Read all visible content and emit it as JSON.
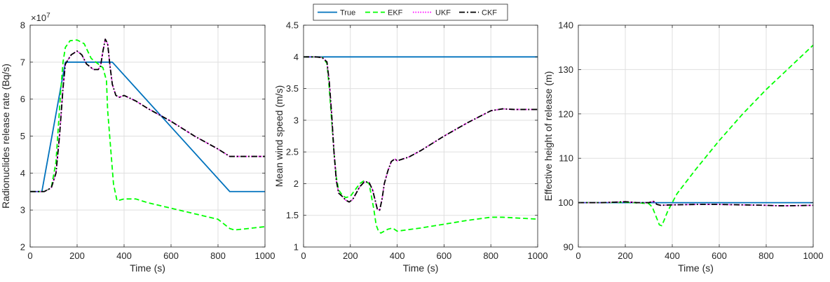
{
  "colors": {
    "true": "#0072bd",
    "ekf": "#00ff00",
    "ukf": "#ff00ff",
    "ckf": "#000000",
    "grid": "#dfdfdf",
    "axis": "#262626"
  },
  "legend": {
    "placement": "top-center",
    "entries": [
      {
        "key": "true",
        "label": "True",
        "dash": "solid"
      },
      {
        "key": "ekf",
        "label": "EKF",
        "dash": "dashed"
      },
      {
        "key": "ukf",
        "label": "UKF",
        "dash": "dotted"
      },
      {
        "key": "ckf",
        "label": "CKF",
        "dash": "dashdot"
      }
    ]
  },
  "chart_data": [
    {
      "type": "line",
      "xlabel": "Time (s)",
      "ylabel": "Radionuclides release rate (Bq/s)",
      "exponent_label": "×10",
      "exponent_power": "7",
      "xlim": [
        0,
        1000
      ],
      "ylim": [
        2,
        8
      ],
      "xticks": [
        "0",
        "200",
        "400",
        "600",
        "800",
        "1000"
      ],
      "yticks": [
        "2",
        "3",
        "4",
        "5",
        "6",
        "7",
        "8"
      ],
      "grid": true,
      "series": [
        {
          "name": "True",
          "key": "true",
          "x": [
            0,
            50,
            150,
            350,
            850,
            1000
          ],
          "y": [
            3.5,
            3.5,
            7.0,
            7.0,
            3.5,
            3.5
          ]
        },
        {
          "name": "EKF",
          "key": "ekf",
          "x": [
            0,
            60,
            90,
            110,
            130,
            140,
            150,
            170,
            200,
            230,
            260,
            290,
            310,
            325,
            330,
            345,
            355,
            370,
            400,
            450,
            500,
            600,
            700,
            800,
            850,
            870,
            1000
          ],
          "y": [
            3.5,
            3.5,
            3.6,
            4.3,
            6.2,
            7.0,
            7.4,
            7.58,
            7.6,
            7.5,
            7.1,
            6.95,
            6.85,
            6.5,
            5.7,
            4.5,
            3.7,
            3.25,
            3.3,
            3.3,
            3.2,
            3.05,
            2.9,
            2.75,
            2.5,
            2.46,
            2.55
          ]
        },
        {
          "name": "UKF",
          "key": "ukf",
          "x": [
            0,
            60,
            90,
            110,
            125,
            140,
            150,
            175,
            200,
            220,
            240,
            270,
            290,
            300,
            310,
            320,
            330,
            340,
            350,
            365,
            380,
            400,
            450,
            500,
            600,
            700,
            800,
            850,
            870,
            1000
          ],
          "y": [
            3.5,
            3.5,
            3.6,
            4.0,
            5.0,
            6.3,
            6.95,
            7.2,
            7.3,
            7.2,
            6.95,
            6.8,
            6.8,
            6.9,
            7.3,
            7.62,
            7.5,
            6.9,
            6.4,
            6.1,
            6.05,
            6.1,
            5.95,
            5.75,
            5.4,
            5.0,
            4.65,
            4.45,
            4.45,
            4.45
          ]
        },
        {
          "name": "CKF",
          "key": "ckf",
          "x": [
            0,
            60,
            90,
            110,
            125,
            140,
            150,
            175,
            200,
            220,
            240,
            270,
            290,
            300,
            310,
            320,
            330,
            340,
            350,
            365,
            380,
            400,
            450,
            500,
            600,
            700,
            800,
            850,
            870,
            1000
          ],
          "y": [
            3.5,
            3.5,
            3.6,
            4.0,
            5.0,
            6.3,
            6.95,
            7.2,
            7.3,
            7.2,
            6.95,
            6.8,
            6.8,
            6.9,
            7.3,
            7.62,
            7.5,
            6.9,
            6.4,
            6.1,
            6.05,
            6.1,
            5.95,
            5.75,
            5.4,
            5.0,
            4.65,
            4.45,
            4.45,
            4.45
          ]
        }
      ]
    },
    {
      "type": "line",
      "xlabel": "Time (s)",
      "ylabel": "Mean wind speed (m/s)",
      "xlim": [
        0,
        1000
      ],
      "ylim": [
        1,
        4.5
      ],
      "xticks": [
        "0",
        "200",
        "400",
        "600",
        "800",
        "1000"
      ],
      "yticks": [
        "1",
        "1.5",
        "2",
        "2.5",
        "3",
        "3.5",
        "4",
        "4.5"
      ],
      "grid": true,
      "series": [
        {
          "name": "True",
          "key": "true",
          "x": [
            0,
            1000
          ],
          "y": [
            4.0,
            4.0
          ]
        },
        {
          "name": "EKF",
          "key": "ekf",
          "x": [
            0,
            50,
            80,
            100,
            110,
            120,
            130,
            140,
            150,
            165,
            180,
            200,
            220,
            240,
            260,
            280,
            300,
            310,
            320,
            330,
            345,
            360,
            380,
            400,
            500,
            600,
            700,
            800,
            850,
            900,
            1000
          ],
          "y": [
            4.0,
            4.0,
            3.99,
            3.9,
            3.5,
            3.0,
            2.5,
            2.1,
            1.9,
            1.82,
            1.78,
            1.8,
            1.9,
            2.0,
            2.05,
            2.0,
            1.6,
            1.35,
            1.25,
            1.22,
            1.25,
            1.28,
            1.3,
            1.25,
            1.3,
            1.36,
            1.42,
            1.47,
            1.47,
            1.46,
            1.44
          ]
        },
        {
          "name": "UKF",
          "key": "ukf",
          "x": [
            0,
            50,
            80,
            100,
            110,
            120,
            130,
            140,
            150,
            165,
            180,
            195,
            210,
            225,
            240,
            260,
            280,
            295,
            305,
            315,
            325,
            335,
            345,
            360,
            375,
            390,
            400,
            450,
            500,
            600,
            700,
            800,
            850,
            900,
            1000
          ],
          "y": [
            4.0,
            4.0,
            3.99,
            3.92,
            3.6,
            3.1,
            2.5,
            2.05,
            1.85,
            1.8,
            1.74,
            1.71,
            1.75,
            1.85,
            1.95,
            2.03,
            2.02,
            1.9,
            1.75,
            1.6,
            1.58,
            1.75,
            2.0,
            2.2,
            2.35,
            2.39,
            2.36,
            2.42,
            2.52,
            2.75,
            2.96,
            3.15,
            3.18,
            3.17,
            3.17
          ]
        },
        {
          "name": "CKF",
          "key": "ckf",
          "x": [
            0,
            50,
            80,
            100,
            110,
            120,
            130,
            140,
            150,
            165,
            180,
            195,
            210,
            225,
            240,
            260,
            280,
            295,
            305,
            315,
            325,
            335,
            345,
            360,
            375,
            390,
            400,
            450,
            500,
            600,
            700,
            800,
            850,
            900,
            1000
          ],
          "y": [
            4.0,
            4.0,
            3.99,
            3.92,
            3.6,
            3.1,
            2.5,
            2.05,
            1.85,
            1.8,
            1.74,
            1.71,
            1.75,
            1.85,
            1.95,
            2.03,
            2.02,
            1.9,
            1.75,
            1.6,
            1.58,
            1.75,
            2.0,
            2.2,
            2.35,
            2.39,
            2.36,
            2.42,
            2.52,
            2.75,
            2.96,
            3.15,
            3.18,
            3.17,
            3.17
          ]
        }
      ]
    },
    {
      "type": "line",
      "xlabel": "Time (s)",
      "ylabel": "Effective height of release (m)",
      "xlim": [
        0,
        1000
      ],
      "ylim": [
        90,
        140
      ],
      "xticks": [
        "0",
        "200",
        "400",
        "600",
        "800",
        "1000"
      ],
      "yticks": [
        "90",
        "100",
        "110",
        "120",
        "130",
        "140"
      ],
      "grid": true,
      "series": [
        {
          "name": "True",
          "key": "true",
          "x": [
            0,
            1000
          ],
          "y": [
            100.0,
            100.0
          ]
        },
        {
          "name": "EKF",
          "key": "ekf",
          "x": [
            0,
            100,
            200,
            300,
            315,
            330,
            345,
            355,
            365,
            380,
            400,
            420,
            500,
            600,
            700,
            800,
            900,
            1000
          ],
          "y": [
            100.0,
            100.0,
            100.1,
            99.8,
            99.0,
            97.0,
            95.0,
            94.8,
            96.0,
            98.0,
            100.0,
            102.0,
            107.5,
            114.0,
            120.0,
            125.5,
            130.5,
            135.5
          ]
        },
        {
          "name": "UKF",
          "key": "ukf",
          "x": [
            0,
            100,
            150,
            200,
            250,
            300,
            320,
            335,
            350,
            400,
            500,
            600,
            700,
            800,
            850,
            900,
            1000
          ],
          "y": [
            100.0,
            100.0,
            100.1,
            100.2,
            100.0,
            100.0,
            100.3,
            99.6,
            99.4,
            99.5,
            99.6,
            99.6,
            99.5,
            99.4,
            99.3,
            99.3,
            99.4
          ]
        },
        {
          "name": "CKF",
          "key": "ckf",
          "x": [
            0,
            100,
            150,
            200,
            250,
            300,
            320,
            335,
            350,
            400,
            500,
            600,
            700,
            800,
            850,
            900,
            1000
          ],
          "y": [
            100.0,
            100.0,
            100.1,
            100.2,
            100.0,
            100.0,
            100.3,
            99.6,
            99.4,
            99.5,
            99.6,
            99.6,
            99.5,
            99.4,
            99.3,
            99.3,
            99.4
          ]
        }
      ]
    }
  ]
}
